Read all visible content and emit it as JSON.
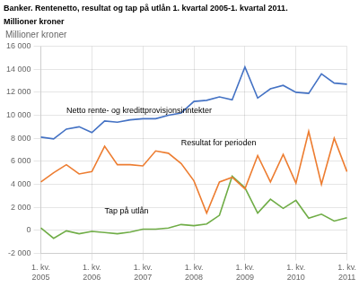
{
  "chart_data": {
    "type": "line",
    "title": "Banker. Rentenetto, resultat og tap på utlån 1. kvartal 2005-1. kvartal 2011.",
    "subtitle": "Millioner kroner",
    "y_label": "Millioner kroner",
    "categories": [
      "1. kv.\n2005",
      null,
      null,
      null,
      "1. kv.\n2006",
      null,
      null,
      null,
      "1. kv.\n2007",
      null,
      null,
      null,
      "1. kv.\n2008",
      null,
      null,
      null,
      "1. kv.\n2009",
      null,
      null,
      null,
      "1. kv.\n2010",
      null,
      null,
      null,
      "1. kv.\n2011"
    ],
    "series": [
      {
        "name": "Netto rente- og kredittprovisjonsinntekter",
        "color": "#4472C4",
        "values": [
          8100,
          7950,
          8800,
          9000,
          8500,
          9500,
          9400,
          9600,
          9700,
          9700,
          10000,
          10200,
          11200,
          11300,
          11600,
          11350,
          14200,
          11500,
          12300,
          12600,
          12000,
          11900,
          13600,
          12800,
          12700
        ]
      },
      {
        "name": "Resultat for perioden",
        "color": "#ED7D31",
        "values": [
          4200,
          5000,
          5700,
          4900,
          5100,
          7300,
          5700,
          5700,
          5600,
          6900,
          6700,
          5800,
          4300,
          1500,
          4200,
          4600,
          3600,
          6500,
          4200,
          6600,
          4100,
          8600,
          4000,
          8000,
          5100
        ]
      },
      {
        "name": "Tap på utlån",
        "color": "#70AD47",
        "values": [
          200,
          -700,
          -50,
          -300,
          -100,
          -200,
          -300,
          -150,
          100,
          100,
          200,
          500,
          400,
          550,
          1300,
          4700,
          3700,
          1500,
          2700,
          1900,
          2600,
          1050,
          1400,
          800,
          1100
        ]
      }
    ],
    "annotations": [
      {
        "text": "Netto rente- og kredittprovisjonsinntekter",
        "x": 2,
        "y": 10200
      },
      {
        "text": "Resultat for perioden",
        "x": 11,
        "y": 7400
      },
      {
        "text": "Tap på utlån",
        "x": 5,
        "y": 1500
      }
    ],
    "ylim": [
      -2000,
      16000
    ],
    "yticks": [
      {
        "value": -2000,
        "label": "-2 000"
      },
      0,
      {
        "value": 2000,
        "label": "2 000"
      },
      {
        "value": 4000,
        "label": "4 000"
      },
      {
        "value": 6000,
        "label": "6 000"
      },
      {
        "value": 8000,
        "label": "8 000"
      },
      {
        "value": 10000,
        "label": "10 000"
      },
      {
        "value": 12000,
        "label": "12 000"
      },
      {
        "value": 14000,
        "label": "14 000"
      },
      {
        "value": 16000,
        "label": "16 000"
      }
    ],
    "grid": true
  }
}
